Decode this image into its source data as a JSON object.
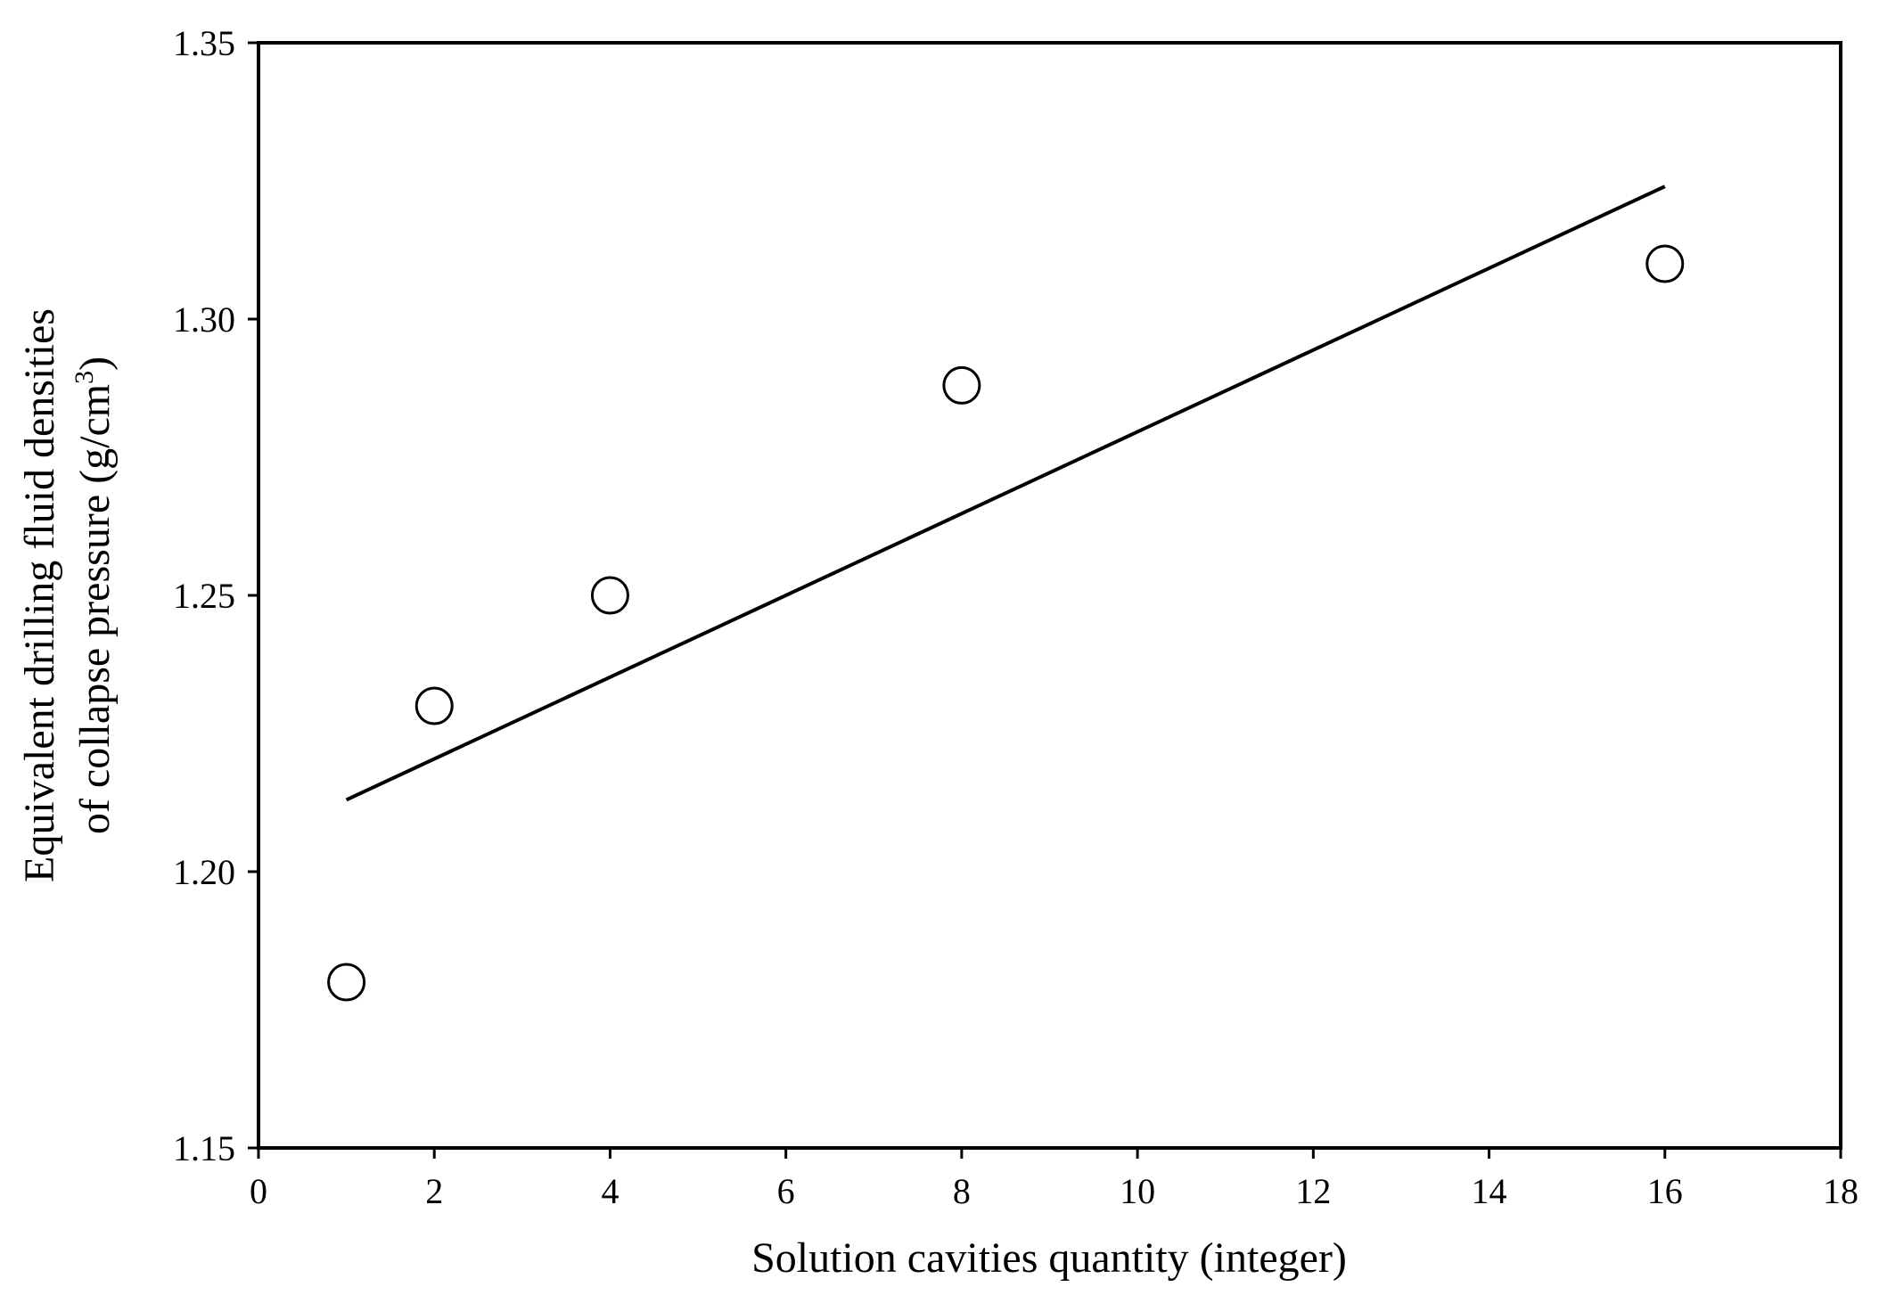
{
  "chart_data": {
    "type": "scatter",
    "xlabel": "Solution cavities quantity (integer)",
    "ylabel_line1": "Equivalent drilling fluid densities",
    "ylabel_line2_prefix": "of collapse pressure (g/cm",
    "ylabel_line2_superscript": "3",
    "ylabel_line2_suffix": ")",
    "xlim": [
      0,
      18
    ],
    "ylim": [
      1.15,
      1.35
    ],
    "xticks": [
      0,
      2,
      4,
      6,
      8,
      10,
      12,
      14,
      16,
      18
    ],
    "yticks": [
      "1.15",
      "1.20",
      "1.25",
      "1.30",
      "1.35"
    ],
    "grid": false,
    "legend": "none",
    "series": [
      {
        "marker": "open-circle",
        "x": [
          1,
          2,
          4,
          8,
          16
        ],
        "y": [
          1.18,
          1.23,
          1.25,
          1.288,
          1.31
        ]
      }
    ],
    "trendline": {
      "type": "linear",
      "x": [
        1,
        16
      ],
      "y": [
        1.213,
        1.324
      ]
    },
    "colors": {
      "marker_stroke": "#000000",
      "line": "#000000",
      "axis": "#000000"
    }
  }
}
